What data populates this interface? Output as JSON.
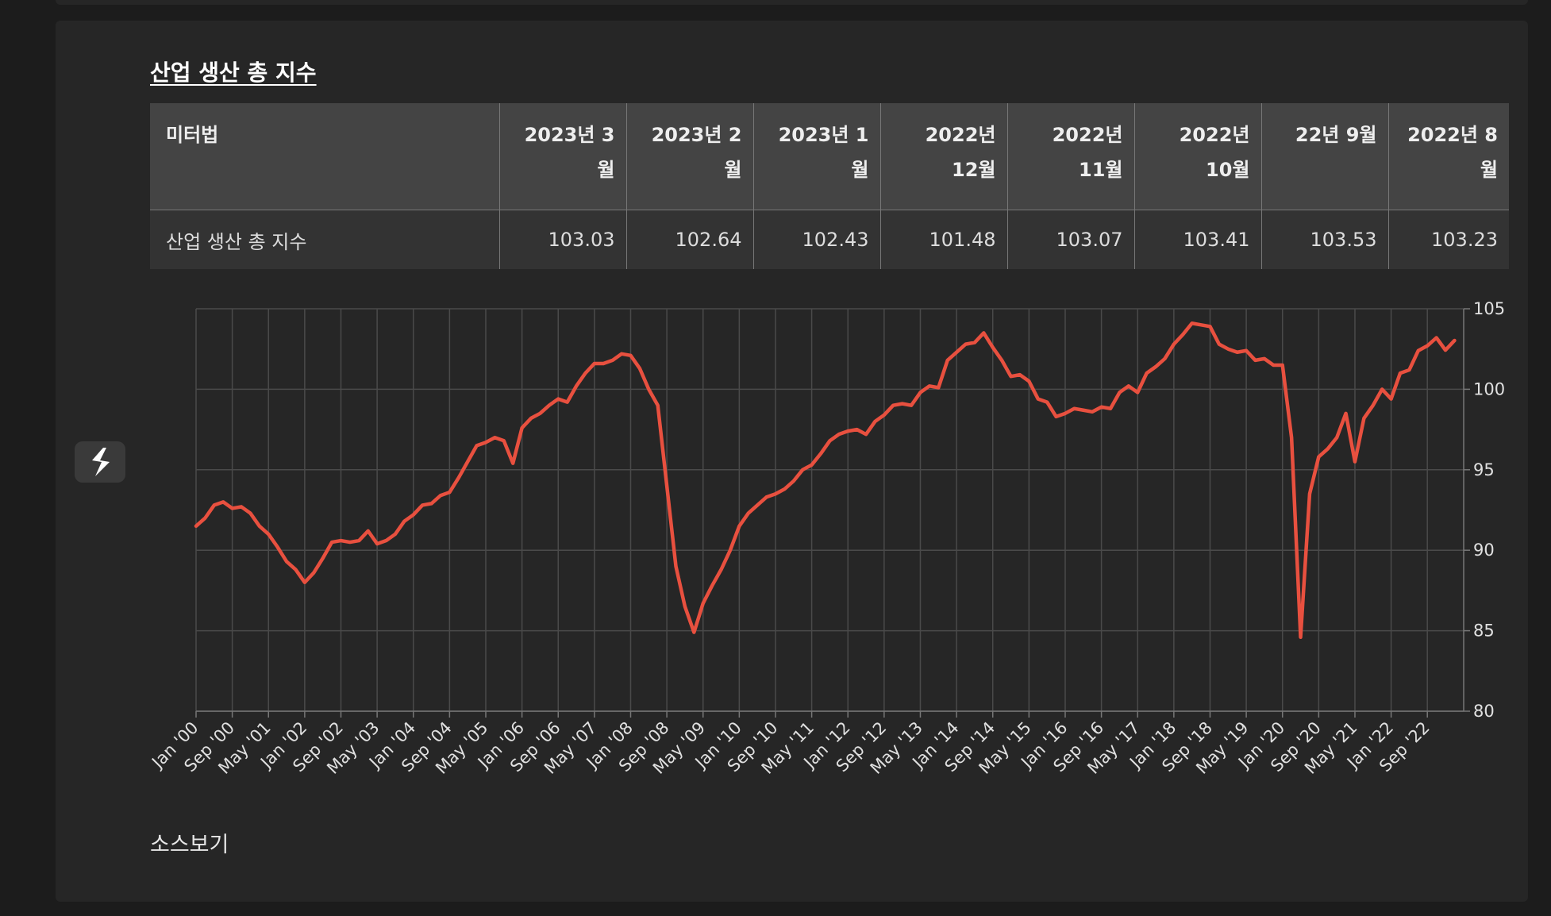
{
  "title": "산업 생산 총 지수",
  "table": {
    "headers": [
      "미터법",
      "2023년 3월",
      "2023년 2월",
      "2023년 1월",
      "2022년 12월",
      "2022년 11월",
      "2022년 10월",
      "22년 9월",
      "2022년 8월"
    ],
    "rows": [
      [
        "산업 생산 총 지수",
        "103.03",
        "102.64",
        "102.43",
        "101.48",
        "103.07",
        "103.41",
        "103.53",
        "103.23"
      ]
    ]
  },
  "chart_data": {
    "type": "line",
    "color": "#e8503f",
    "grid": true,
    "y_axis_side": "right",
    "ylim": [
      80,
      105
    ],
    "yticks": [
      80,
      85,
      90,
      95,
      100,
      105
    ],
    "categories": [
      "Jan '00",
      null,
      null,
      null,
      "Sep '00",
      null,
      null,
      null,
      "May '01",
      null,
      null,
      null,
      "Jan '02",
      null,
      null,
      null,
      "Sep '02",
      null,
      null,
      null,
      "May '03",
      null,
      null,
      null,
      "Jan '04",
      null,
      null,
      null,
      "Sep '04",
      null,
      null,
      null,
      "May '05",
      null,
      null,
      null,
      "Jan '06",
      null,
      null,
      null,
      "Sep '06",
      null,
      null,
      null,
      "May '07",
      null,
      null,
      null,
      "Jan '08",
      null,
      null,
      null,
      "Sep '08",
      null,
      null,
      null,
      "May '09",
      null,
      null,
      null,
      "Jan '10",
      null,
      null,
      null,
      "Sep '10",
      null,
      null,
      null,
      "May '11",
      null,
      null,
      null,
      "Jan '12",
      null,
      null,
      null,
      "Sep '12",
      null,
      null,
      null,
      "May '13",
      null,
      null,
      null,
      "Jan '14",
      null,
      null,
      null,
      "Sep '14",
      null,
      null,
      null,
      "May '15",
      null,
      null,
      null,
      "Jan '16",
      null,
      null,
      null,
      "Sep '16",
      null,
      null,
      null,
      "May '17",
      null,
      null,
      null,
      "Jan '18",
      null,
      null,
      null,
      "Sep '18",
      null,
      null,
      null,
      "May '19",
      null,
      null,
      null,
      "Jan '20",
      null,
      null,
      null,
      "Sep '20",
      null,
      null,
      null,
      "May '21",
      null,
      null,
      null,
      "Jan '22",
      null,
      null,
      null,
      "Sep '22",
      null,
      null,
      null
    ],
    "values": [
      91.5,
      92.0,
      92.8,
      93.0,
      92.6,
      92.7,
      92.3,
      91.5,
      91.0,
      90.2,
      89.3,
      88.8,
      88.0,
      88.6,
      89.5,
      90.5,
      90.6,
      90.5,
      90.6,
      91.2,
      90.4,
      90.6,
      91.0,
      91.8,
      92.2,
      92.8,
      92.9,
      93.4,
      93.6,
      94.5,
      95.5,
      96.5,
      96.7,
      97.0,
      96.8,
      95.4,
      97.6,
      98.2,
      98.5,
      99.0,
      99.4,
      99.2,
      100.2,
      101.0,
      101.6,
      101.6,
      101.8,
      102.2,
      102.1,
      101.3,
      100.0,
      99.0,
      94.0,
      89.0,
      86.5,
      84.9,
      86.7,
      87.8,
      88.8,
      90.0,
      91.5,
      92.3,
      92.8,
      93.3,
      93.5,
      93.8,
      94.3,
      95.0,
      95.3,
      96.0,
      96.8,
      97.2,
      97.4,
      97.5,
      97.2,
      98.0,
      98.4,
      99.0,
      99.1,
      99.0,
      99.8,
      100.2,
      100.1,
      101.8,
      102.3,
      102.8,
      102.9,
      103.5,
      102.6,
      101.8,
      100.8,
      100.9,
      100.5,
      99.4,
      99.2,
      98.3,
      98.5,
      98.8,
      98.7,
      98.6,
      98.9,
      98.8,
      99.8,
      100.2,
      99.8,
      101.0,
      101.4,
      101.9,
      102.8,
      103.4,
      104.1,
      104.0,
      103.9,
      102.8,
      102.5,
      102.3,
      102.4,
      101.8,
      101.9,
      101.5,
      101.5,
      97.0,
      84.6,
      93.5,
      95.8,
      96.3,
      97.0,
      98.5,
      95.5,
      98.2,
      99.0,
      100.0,
      99.4,
      101.0,
      101.2,
      102.4,
      102.7,
      103.2,
      102.43,
      103.03
    ]
  },
  "source_link": "소스보기"
}
